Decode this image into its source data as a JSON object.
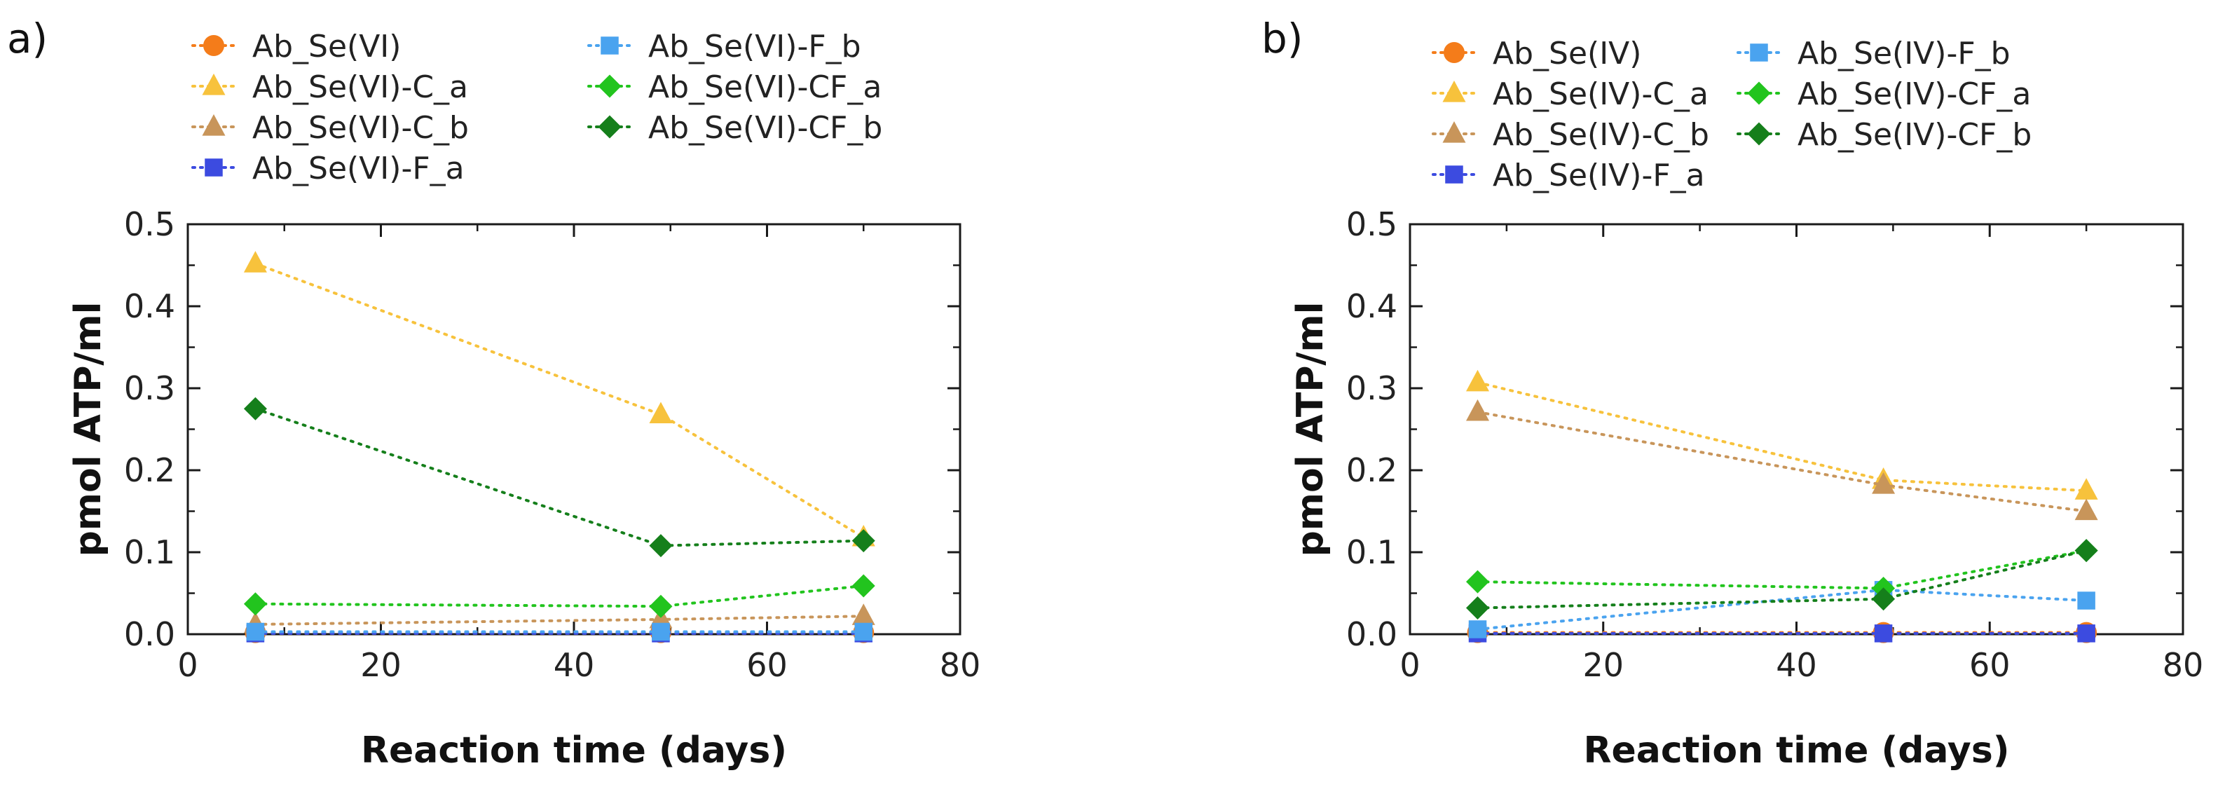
{
  "chart_data": [
    {
      "type": "line",
      "panel_label": "a)",
      "xlabel": "Reaction time (days)",
      "ylabel": "pmol ATP/ml",
      "xlim": [
        0,
        80
      ],
      "ylim": [
        0,
        0.5
      ],
      "xticks": [
        0,
        20,
        40,
        60,
        80
      ],
      "yticks": [
        0.0,
        0.1,
        0.2,
        0.3,
        0.4,
        0.5
      ],
      "ytick_labels": [
        "0.0",
        "0.1",
        "0.2",
        "0.3",
        "0.4",
        "0.5"
      ],
      "x": [
        7,
        49,
        70
      ],
      "series": [
        {
          "name": "Ab_Se(VI)",
          "values": [
            0.002,
            0.002,
            0.002
          ],
          "color": "#f47c1a",
          "marker": "circle"
        },
        {
          "name": "Ab_Se(VI)-C_a",
          "values": [
            0.452,
            0.268,
            0.118
          ],
          "color": "#f7c23c",
          "marker": "triangle"
        },
        {
          "name": "Ab_Se(VI)-C_b",
          "values": [
            0.012,
            0.018,
            0.022
          ],
          "color": "#c8955a",
          "marker": "triangle"
        },
        {
          "name": "Ab_Se(VI)-F_a",
          "values": [
            0.001,
            0.001,
            0.001
          ],
          "color": "#3c4be0",
          "marker": "square"
        },
        {
          "name": "Ab_Se(VI)-F_b",
          "values": [
            0.003,
            0.003,
            0.003
          ],
          "color": "#4aa3ef",
          "marker": "square"
        },
        {
          "name": "Ab_Se(VI)-CF_a",
          "values": [
            0.037,
            0.034,
            0.059
          ],
          "color": "#22c41e",
          "marker": "diamond"
        },
        {
          "name": "Ab_Se(VI)-CF_b",
          "values": [
            0.275,
            0.108,
            0.114
          ],
          "color": "#157f1b",
          "marker": "diamond"
        }
      ]
    },
    {
      "type": "line",
      "panel_label": "b)",
      "xlabel": "Reaction time (days)",
      "ylabel": "pmol ATP/ml",
      "xlim": [
        0,
        80
      ],
      "ylim": [
        0,
        0.5
      ],
      "xticks": [
        0,
        20,
        40,
        60,
        80
      ],
      "yticks": [
        0.0,
        0.1,
        0.2,
        0.3,
        0.4,
        0.5
      ],
      "ytick_labels": [
        "0.0",
        "0.1",
        "0.2",
        "0.3",
        "0.4",
        "0.5"
      ],
      "x": [
        7,
        49,
        70
      ],
      "series": [
        {
          "name": "Ab_Se(IV)",
          "values": [
            0.002,
            0.002,
            0.002
          ],
          "color": "#f47c1a",
          "marker": "circle"
        },
        {
          "name": "Ab_Se(IV)-C_a",
          "values": [
            0.307,
            0.188,
            0.175
          ],
          "color": "#f7c23c",
          "marker": "triangle"
        },
        {
          "name": "Ab_Se(IV)-C_b",
          "values": [
            0.271,
            0.182,
            0.15
          ],
          "color": "#c8955a",
          "marker": "triangle"
        },
        {
          "name": "Ab_Se(IV)-F_a",
          "values": [
            0.001,
            0.001,
            0.001
          ],
          "color": "#3c4be0",
          "marker": "square"
        },
        {
          "name": "Ab_Se(IV)-F_b",
          "values": [
            0.006,
            0.054,
            0.041
          ],
          "color": "#4aa3ef",
          "marker": "square"
        },
        {
          "name": "Ab_Se(IV)-CF_a",
          "values": [
            0.064,
            0.056,
            0.102
          ],
          "color": "#22c41e",
          "marker": "diamond"
        },
        {
          "name": "Ab_Se(IV)-CF_b",
          "values": [
            0.032,
            0.043,
            0.102
          ],
          "color": "#157f1b",
          "marker": "diamond"
        }
      ]
    }
  ]
}
